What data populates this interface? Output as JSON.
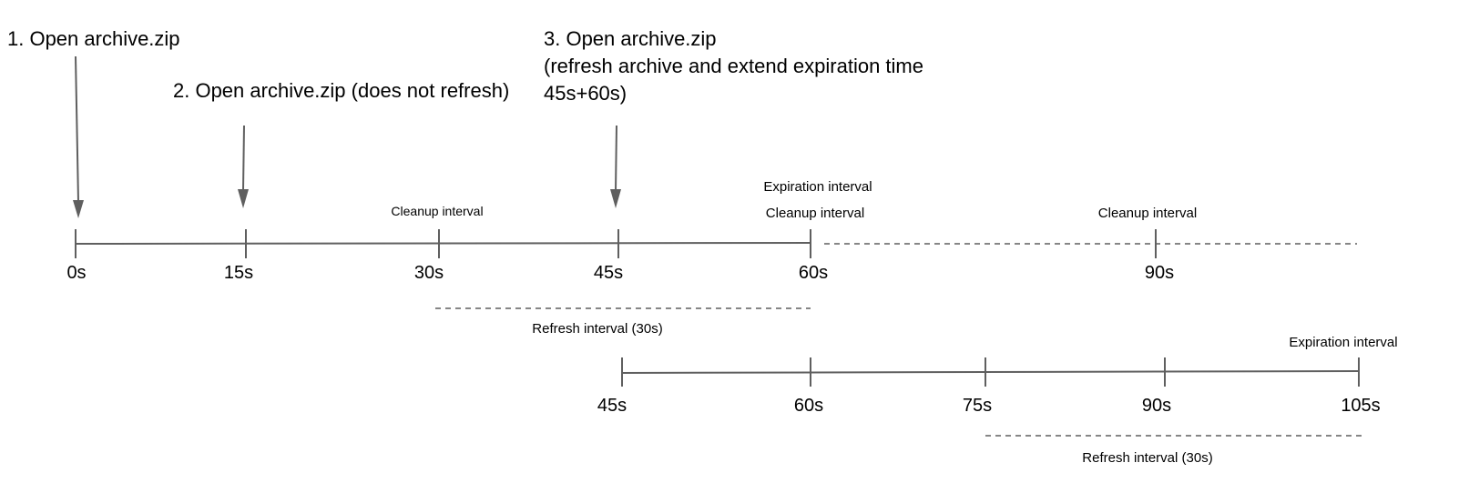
{
  "steps": [
    {
      "label": "1. Open archive.zip"
    },
    {
      "label": "2. Open archive.zip (does not refresh)"
    },
    {
      "lines": [
        "3. Open archive.zip",
        "(refresh archive and extend expiration time",
        "45s+60s)"
      ]
    }
  ],
  "timeline_top": {
    "ticks": [
      "0s",
      "15s",
      "30s",
      "45s",
      "60s",
      "90s"
    ],
    "annotations": {
      "cleanup_30": "Cleanup interval",
      "expiration_60": "Expiration interval",
      "cleanup_60": "Cleanup interval",
      "cleanup_90": "Cleanup interval"
    },
    "refresh_label": "Refresh interval (30s)"
  },
  "timeline_bottom": {
    "ticks": [
      "45s",
      "60s",
      "75s",
      "90s",
      "105s"
    ],
    "expiration_label": "Expiration interval",
    "refresh_label": "Refresh interval (30s)"
  },
  "colors": {
    "line": "#5f5f5f",
    "text": "#000000"
  }
}
